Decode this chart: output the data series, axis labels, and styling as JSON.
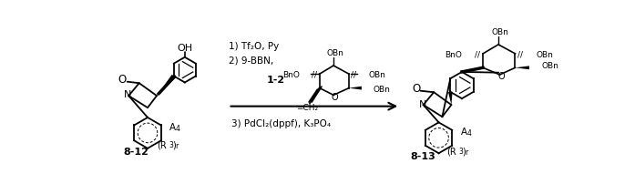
{
  "figsize": [
    6.97,
    2.02
  ],
  "dpi": 100,
  "bg_color": "#ffffff",
  "step1": "1) Tf₂O, Py",
  "step2": "2) 9-BBN,",
  "compound": "1-2",
  "step3": "3) PdCl₂(dppf), K₃PO₄",
  "label_left": "8-12",
  "label_right": "8-13"
}
